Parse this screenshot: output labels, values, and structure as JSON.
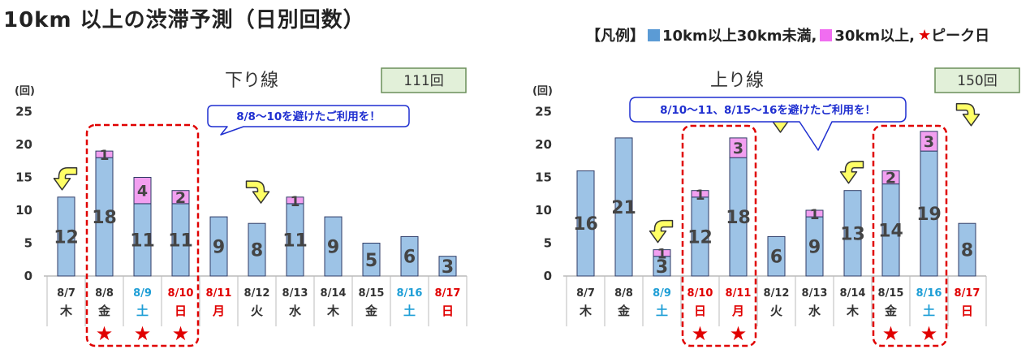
{
  "page": {
    "title": "10km 以上の渋滞予測（日別回数）"
  },
  "legend": {
    "bracket": "【凡例】",
    "blue_label": "10km以上30km未満,",
    "pink_label": "30km以上,",
    "star": "★",
    "star_label": "ピーク日"
  },
  "colors": {
    "blue": "#9dc3e6",
    "pink": "#f29ff0",
    "red": "#e00000",
    "sat": "#1e9ed6",
    "border": "#2f3b66",
    "callout": "#1f2fd0",
    "boxbg": "#e2f0d9"
  },
  "chart_data": [
    {
      "type": "bar",
      "title": "下り線",
      "total_label": "111回",
      "callout": "8/8〜10を避けたご利用を！",
      "ylabel": "(回)",
      "ylim": [
        0,
        25
      ],
      "yticks": [
        "0",
        "5",
        "10",
        "15",
        "20",
        "25"
      ],
      "categories": [
        "8/7",
        "8/8",
        "8/9",
        "8/10",
        "8/11",
        "8/12",
        "8/13",
        "8/14",
        "8/15",
        "8/16",
        "8/17"
      ],
      "weekdays": [
        "木",
        "金",
        "土",
        "日",
        "月",
        "火",
        "水",
        "木",
        "金",
        "土",
        "日"
      ],
      "day_types": [
        "w",
        "w",
        "sat",
        "sun",
        "sun",
        "w",
        "w",
        "w",
        "w",
        "sat",
        "sun"
      ],
      "series": [
        {
          "name": "10km以上30km未満",
          "values": [
            12,
            18,
            11,
            11,
            9,
            8,
            11,
            9,
            5,
            6,
            3
          ]
        },
        {
          "name": "30km以上",
          "values": [
            0,
            1,
            4,
            2,
            0,
            0,
            1,
            0,
            0,
            0,
            0
          ]
        }
      ],
      "peak_days": [
        "8/8",
        "8/9",
        "8/10"
      ],
      "arrows_left": [
        "8/7"
      ],
      "arrows_right": [
        "8/11"
      ],
      "highlight_groups": [
        [
          "8/8",
          "8/10"
        ]
      ]
    },
    {
      "type": "bar",
      "title": "上り線",
      "total_label": "150回",
      "callout": "8/10〜11、8/15〜16を避けたご利用を！",
      "ylabel": "(回)",
      "ylim": [
        0,
        25
      ],
      "yticks": [
        "0",
        "5",
        "10",
        "15",
        "20",
        "25"
      ],
      "categories": [
        "8/7",
        "8/8",
        "8/9",
        "8/10",
        "8/11",
        "8/12",
        "8/13",
        "8/14",
        "8/15",
        "8/16",
        "8/17"
      ],
      "weekdays": [
        "木",
        "金",
        "土",
        "日",
        "月",
        "火",
        "水",
        "木",
        "金",
        "土",
        "日"
      ],
      "day_types": [
        "w",
        "w",
        "sat",
        "sun",
        "sun",
        "w",
        "w",
        "w",
        "w",
        "sat",
        "sun"
      ],
      "series": [
        {
          "name": "10km以上30km未満",
          "values": [
            16,
            21,
            3,
            12,
            18,
            6,
            9,
            13,
            14,
            19,
            8
          ]
        },
        {
          "name": "30km以上",
          "values": [
            0,
            0,
            1,
            1,
            3,
            0,
            1,
            0,
            2,
            3,
            0
          ]
        }
      ],
      "peak_days": [
        "8/10",
        "8/11",
        "8/15",
        "8/16"
      ],
      "arrows_left": [
        "8/9",
        "8/14"
      ],
      "arrows_right": [
        "8/11",
        "8/16"
      ],
      "highlight_groups": [
        [
          "8/10",
          "8/11"
        ],
        [
          "8/15",
          "8/16"
        ]
      ]
    }
  ]
}
